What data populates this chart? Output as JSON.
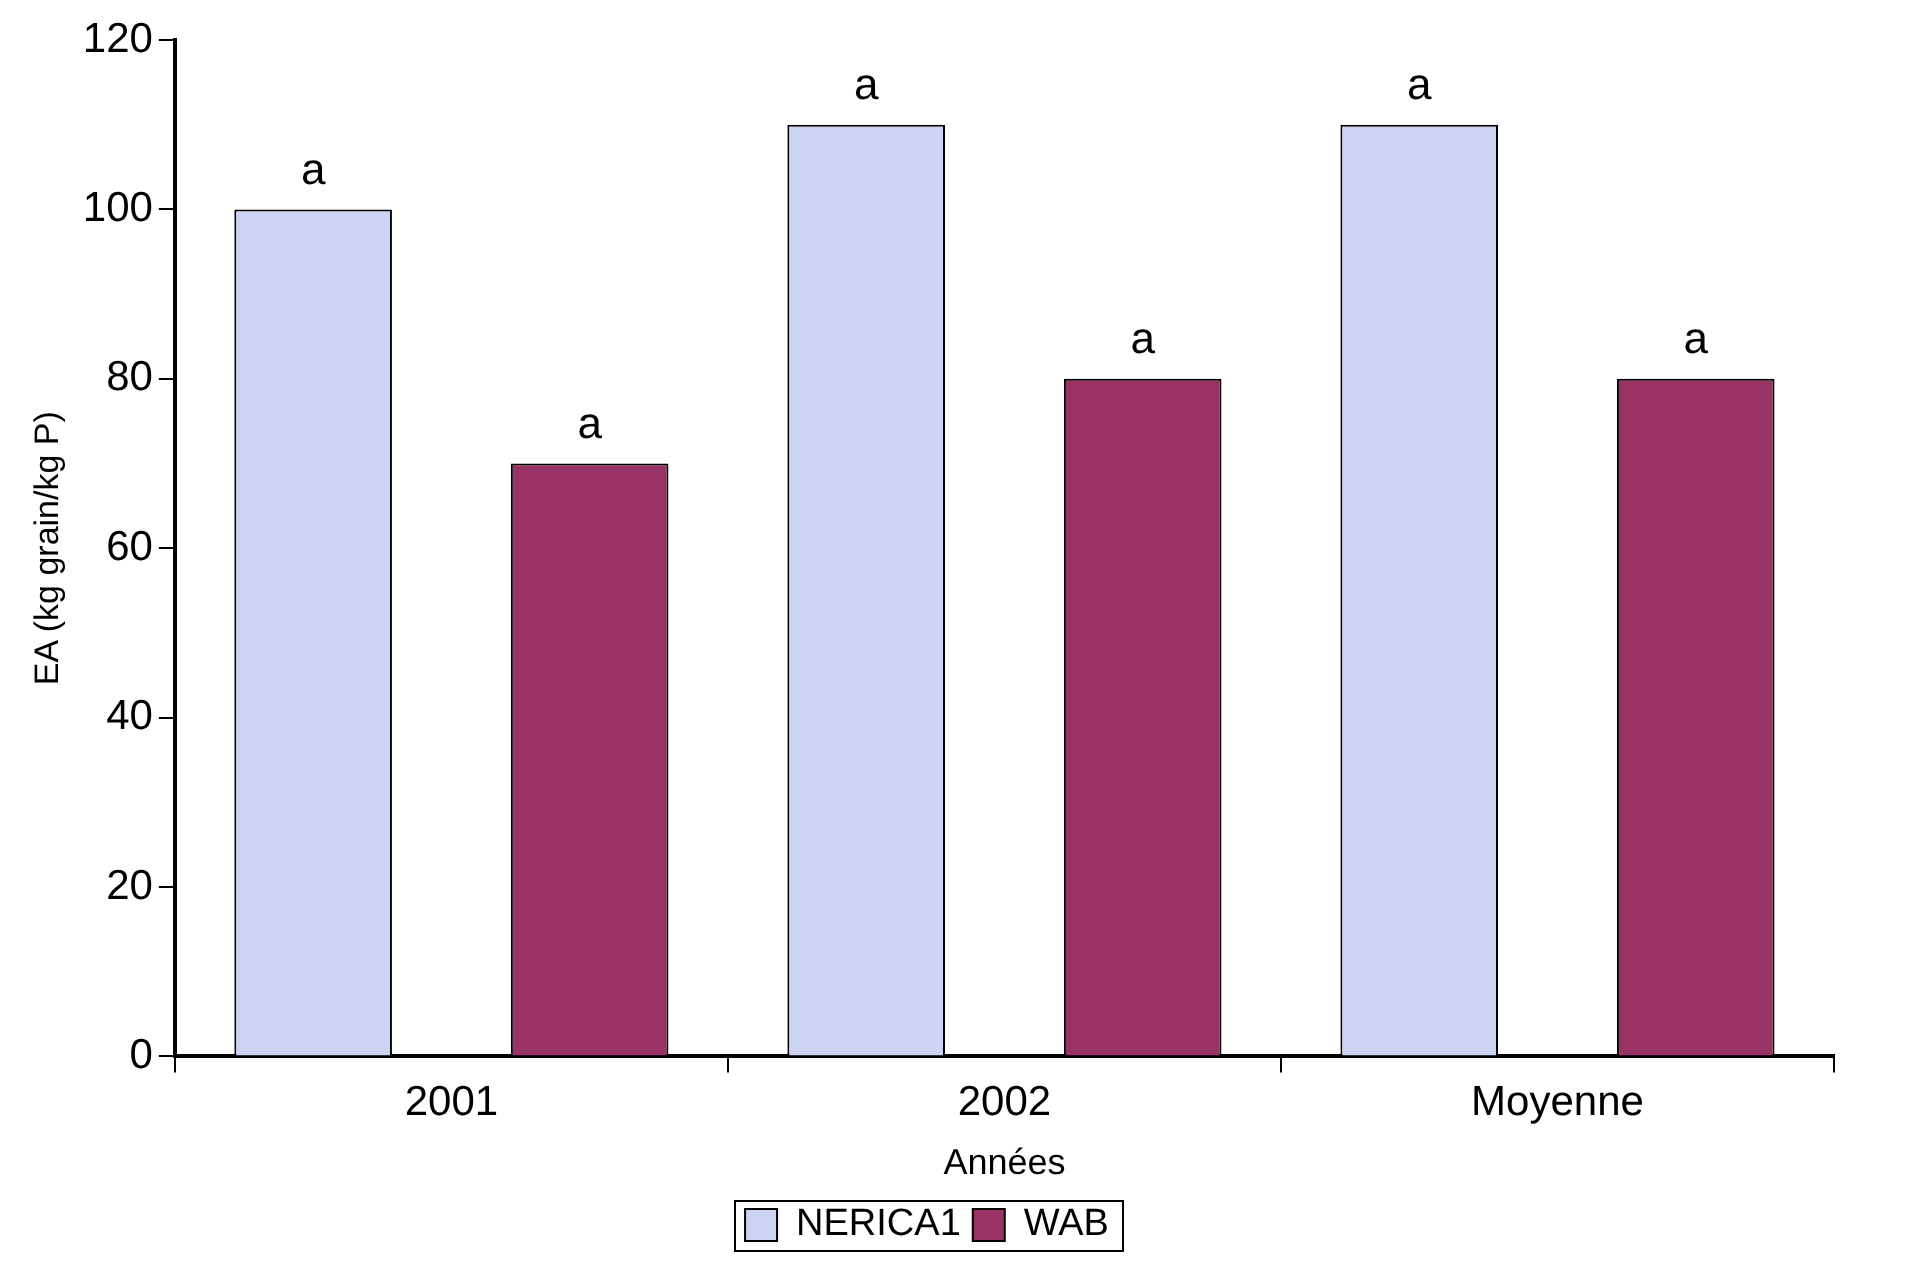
{
  "chart_data": {
    "type": "bar",
    "xlabel": "Années",
    "ylabel": "EA (kg grain/kg P)",
    "categories": [
      "2001",
      "2002",
      "Moyenne"
    ],
    "series": [
      {
        "name": "NERICA1",
        "color": "#cdd3f2",
        "values": [
          100,
          110,
          110
        ],
        "value_labels": [
          "a",
          "a",
          "a"
        ]
      },
      {
        "name": "WAB",
        "color": "#993366",
        "values": [
          70,
          80,
          80
        ],
        "value_labels": [
          "a",
          "a",
          "a"
        ]
      }
    ],
    "ylim": [
      0,
      120
    ],
    "yticks": [
      0,
      20,
      40,
      60,
      80,
      100,
      120
    ],
    "grid": false,
    "legend": "bottom"
  }
}
